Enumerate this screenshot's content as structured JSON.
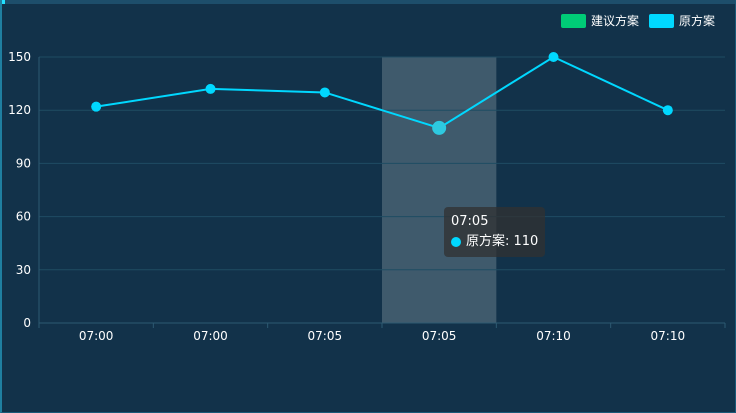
{
  "chart_data": {
    "type": "line",
    "categories": [
      "07:00",
      "07:00",
      "07:05",
      "07:05",
      "07:10",
      "07:10"
    ],
    "series": [
      {
        "name": "原方案",
        "values": [
          122,
          132,
          130,
          110,
          150,
          120
        ],
        "color": "#00d8ff"
      }
    ],
    "legend": [
      {
        "name": "建议方案",
        "color": "#00cc77"
      },
      {
        "name": "原方案",
        "color": "#00d8ff"
      }
    ],
    "legend_position": "top-right",
    "ylim": [
      0,
      150
    ],
    "yticks": [
      0,
      30,
      60,
      90,
      120,
      150
    ],
    "grid": true,
    "highlight_index": 3,
    "tooltip": {
      "title": "07:05",
      "series_name": "原方案",
      "value": "110",
      "text": "原方案: 110"
    }
  }
}
